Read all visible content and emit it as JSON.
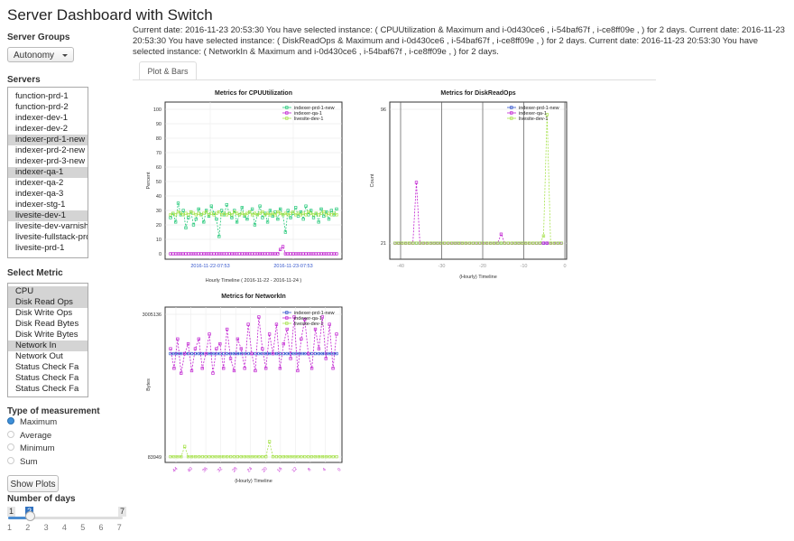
{
  "app_title": "Server Dashboard with Switch",
  "sidebar": {
    "server_groups_label": "Server Groups",
    "server_group_selected": "Autonomy",
    "servers_label": "Servers",
    "servers": [
      {
        "label": "function-prd-1",
        "selected": false
      },
      {
        "label": "function-prd-2",
        "selected": false
      },
      {
        "label": "indexer-dev-1",
        "selected": false
      },
      {
        "label": "indexer-dev-2",
        "selected": false
      },
      {
        "label": "indexer-prd-1-new",
        "selected": true
      },
      {
        "label": "indexer-prd-2-new",
        "selected": false
      },
      {
        "label": "indexer-prd-3-new",
        "selected": false
      },
      {
        "label": "indexer-qa-1",
        "selected": true
      },
      {
        "label": "indexer-qa-2",
        "selected": false
      },
      {
        "label": "indexer-qa-3",
        "selected": false
      },
      {
        "label": "indexer-stg-1",
        "selected": false
      },
      {
        "label": "livesite-dev-1",
        "selected": true
      },
      {
        "label": "livesite-dev-varnish-",
        "selected": false
      },
      {
        "label": "livesite-fullstack-prd",
        "selected": false
      },
      {
        "label": "livesite-prd-1",
        "selected": false
      }
    ],
    "metric_label": "Select Metric",
    "metrics": [
      {
        "label": "CPU",
        "selected": true
      },
      {
        "label": "Disk Read Ops",
        "selected": true
      },
      {
        "label": "Disk Write Ops",
        "selected": false
      },
      {
        "label": "Disk Read Bytes",
        "selected": false
      },
      {
        "label": "Disk Write Bytes",
        "selected": false
      },
      {
        "label": "Network In",
        "selected": true
      },
      {
        "label": "Network Out",
        "selected": false
      },
      {
        "label": "Status Check Fa",
        "selected": false
      },
      {
        "label": "Status Check Fa",
        "selected": false
      },
      {
        "label": "Status Check Fa",
        "selected": false
      }
    ],
    "measurement_label": "Type of measurement",
    "measurements": [
      {
        "label": "Maximum",
        "selected": true
      },
      {
        "label": "Average",
        "selected": false
      },
      {
        "label": "Minimum",
        "selected": false
      },
      {
        "label": "Sum",
        "selected": false
      }
    ],
    "show_plots_label": "Show Plots",
    "days_label": "Number of days",
    "days_slider": {
      "min": "1",
      "max": "7",
      "value": "2",
      "ticks": [
        "1",
        "2",
        "3",
        "4",
        "5",
        "6",
        "7"
      ]
    }
  },
  "status_text": "Current date: 2016-11-23 20:53:30 You have selected instance: ( CPUUtilization & Maximum and i-0d430ce6 , i-54baf67f , i-ce8ff09e , ) for 2 days. Current date: 2016-11-23 20:53:30 You have selected instance: ( DiskReadOps & Maximum and i-0d430ce6 , i-54baf67f , i-ce8ff09e , ) for 2 days. Current date: 2016-11-23 20:53:30 You have selected instance: ( NetworkIn & Maximum and i-0d430ce6 , i-54baf67f , i-ce8ff09e , ) for 2 days.",
  "tab_label": "Plot & Bars",
  "colors": {
    "prd": "#22c878",
    "qa": "#c020d0",
    "live": "#a6e24a",
    "blue": "#3355cc"
  },
  "chart_data": [
    {
      "type": "line",
      "title": "Metrics for  CPUUtilization",
      "ylabel": "Percent",
      "xlabel": "Hourly Timeline  ( 2016-11-22 - 2016-11-24 )",
      "yticks": [
        "0",
        "10",
        "20",
        "30",
        "40",
        "50",
        "60",
        "70",
        "80",
        "90",
        "100"
      ],
      "ylim": [
        0,
        100
      ],
      "xticks": [
        "2016-11-22-07:53",
        "2016-11-23-07:53"
      ],
      "legend": [
        "indexer-prd-1-new",
        "indexer-qa-1",
        "livesite-dev-1"
      ],
      "series": [
        {
          "name": "indexer-prd-1-new",
          "values": [
            25,
            28,
            22,
            35,
            27,
            30,
            18,
            25,
            29,
            20,
            24,
            31,
            27,
            22,
            30,
            26,
            33,
            28,
            24,
            12,
            30,
            27,
            34,
            28,
            25,
            30,
            22,
            27,
            32,
            26,
            24,
            29,
            31,
            20,
            27,
            33,
            25,
            28,
            22,
            30,
            26,
            29,
            24,
            31,
            27,
            15,
            30,
            25,
            28,
            32,
            26,
            29,
            24,
            33,
            27,
            30,
            25,
            28,
            22,
            31,
            26,
            29,
            24,
            30,
            27,
            31
          ]
        },
        {
          "name": "indexer-qa-1",
          "values": [
            0,
            0,
            0,
            0,
            0,
            0,
            0,
            0,
            0,
            0,
            0,
            0,
            0,
            0,
            0,
            0,
            0,
            0,
            0,
            0,
            0,
            0,
            0,
            0,
            0,
            0,
            0,
            0,
            0,
            0,
            0,
            0,
            0,
            0,
            0,
            0,
            0,
            0,
            0,
            0,
            0,
            0,
            0,
            3,
            5,
            0,
            0,
            0,
            0,
            0,
            0,
            0,
            0,
            0,
            0,
            0,
            0,
            0,
            0,
            0,
            0,
            0,
            0,
            0,
            0,
            0
          ]
        },
        {
          "name": "livesite-dev-1",
          "values": [
            27,
            28,
            27,
            29,
            28,
            27,
            28,
            27,
            29,
            28,
            27,
            28,
            27,
            28,
            29,
            27,
            28,
            27,
            28,
            29,
            27,
            28,
            27,
            28,
            27,
            29,
            28,
            27,
            28,
            27,
            28,
            29,
            27,
            28,
            27,
            28,
            29,
            27,
            28,
            27,
            28,
            27,
            29,
            28,
            27,
            28,
            27,
            28,
            29,
            27,
            28,
            27,
            28,
            27,
            29,
            28,
            27,
            28,
            27,
            28,
            29,
            27,
            28,
            27,
            28,
            27
          ]
        }
      ]
    },
    {
      "type": "line",
      "title": "Metrics for  DiskReadOps",
      "ylabel": "Count",
      "xlabel": "(Hourly) Timeline",
      "yticks": [
        "21",
        "96"
      ],
      "ylim": [
        15,
        96
      ],
      "xticks": [
        "-40",
        "-30",
        "-20",
        "-10",
        "0"
      ],
      "legend": [
        "indexer-prd-1-new",
        "indexer-qa-1",
        "livesite-dev-1"
      ],
      "series": [
        {
          "name": "indexer-prd-1-new",
          "values": [
            21,
            21,
            21,
            21,
            21,
            21,
            21,
            21,
            21,
            21,
            21,
            21,
            21,
            21,
            21,
            21,
            21,
            21,
            21,
            21,
            21,
            21,
            21,
            21,
            21,
            21,
            21,
            21,
            21,
            21,
            21,
            21,
            21,
            21,
            21,
            21,
            21,
            21,
            21,
            21,
            21,
            21,
            21,
            21,
            21,
            21,
            21,
            21
          ]
        },
        {
          "name": "indexer-qa-1",
          "values": [
            21,
            21,
            21,
            21,
            21,
            21,
            55,
            21,
            21,
            21,
            21,
            21,
            21,
            21,
            21,
            21,
            21,
            21,
            21,
            21,
            21,
            21,
            21,
            21,
            21,
            21,
            21,
            21,
            21,
            21,
            26,
            21,
            21,
            21,
            21,
            21,
            21,
            21,
            21,
            21,
            21,
            21,
            21,
            21,
            21,
            21,
            21,
            21
          ]
        },
        {
          "name": "livesite-dev-1",
          "values": [
            21,
            21,
            21,
            21,
            21,
            21,
            21,
            21,
            21,
            21,
            21,
            21,
            21,
            21,
            21,
            21,
            21,
            21,
            21,
            21,
            21,
            21,
            21,
            21,
            21,
            21,
            21,
            21,
            21,
            21,
            21,
            21,
            21,
            21,
            21,
            21,
            21,
            21,
            21,
            21,
            21,
            21,
            25,
            93,
            21,
            21,
            21,
            21
          ]
        }
      ]
    },
    {
      "type": "line",
      "title": "Metrics for  NetworkIn",
      "ylabel": "Bytes",
      "xlabel": "(Hourly) Timeline",
      "yticks": [
        "83949",
        "3005136"
      ],
      "ylim": [
        83949,
        3005136
      ],
      "xticks": [
        "44",
        "40",
        "36",
        "32",
        "28",
        "24",
        "20",
        "16",
        "12",
        "8",
        "4",
        "0"
      ],
      "legend": [
        "indexer-prd-1-new",
        "indexer-qa-1",
        "livesite-dev-1"
      ],
      "series": [
        {
          "name": "indexer-prd-1-new",
          "values": [
            2200000,
            2200000,
            2200000,
            2200000,
            2200000,
            2200000,
            2200000,
            2200000,
            2200000,
            2200000,
            2200000,
            2200000,
            2200000,
            2200000,
            2200000,
            2200000,
            2200000,
            2200000,
            2200000,
            2200000,
            2200000,
            2200000,
            2200000,
            2200000,
            2200000,
            2200000,
            2200000,
            2200000,
            2200000,
            2200000,
            2200000,
            2200000,
            2200000,
            2200000,
            2200000,
            2200000,
            2200000,
            2200000,
            2200000,
            2200000,
            2200000,
            2200000,
            2200000,
            2200000,
            2200000,
            2200000,
            2200000,
            2200000
          ]
        },
        {
          "name": "indexer-qa-1",
          "values": [
            2300000,
            1900000,
            2500000,
            1800000,
            2200000,
            2400000,
            1850000,
            2300000,
            2500000,
            1900000,
            2200000,
            2600000,
            1800000,
            2300000,
            2400000,
            1900000,
            2700000,
            2100000,
            1850000,
            2500000,
            2300000,
            1900000,
            2800000,
            2200000,
            1850000,
            2950000,
            2300000,
            1900000,
            2600000,
            2200000,
            2800000,
            1900000,
            2400000,
            2700000,
            2100000,
            2950000,
            1850000,
            2500000,
            2900000,
            2200000,
            1900000,
            2700000,
            2300000,
            2950000,
            2100000,
            2800000,
            1900000,
            2600000
          ]
        },
        {
          "name": "livesite-dev-1",
          "values": [
            90000,
            90000,
            90000,
            90000,
            300000,
            90000,
            90000,
            90000,
            90000,
            90000,
            90000,
            90000,
            90000,
            90000,
            90000,
            90000,
            90000,
            90000,
            90000,
            90000,
            90000,
            90000,
            90000,
            90000,
            90000,
            90000,
            90000,
            90000,
            400000,
            90000,
            90000,
            90000,
            90000,
            90000,
            90000,
            90000,
            90000,
            90000,
            90000,
            90000,
            90000,
            90000,
            90000,
            90000,
            90000,
            90000,
            90000,
            90000
          ]
        }
      ]
    }
  ]
}
